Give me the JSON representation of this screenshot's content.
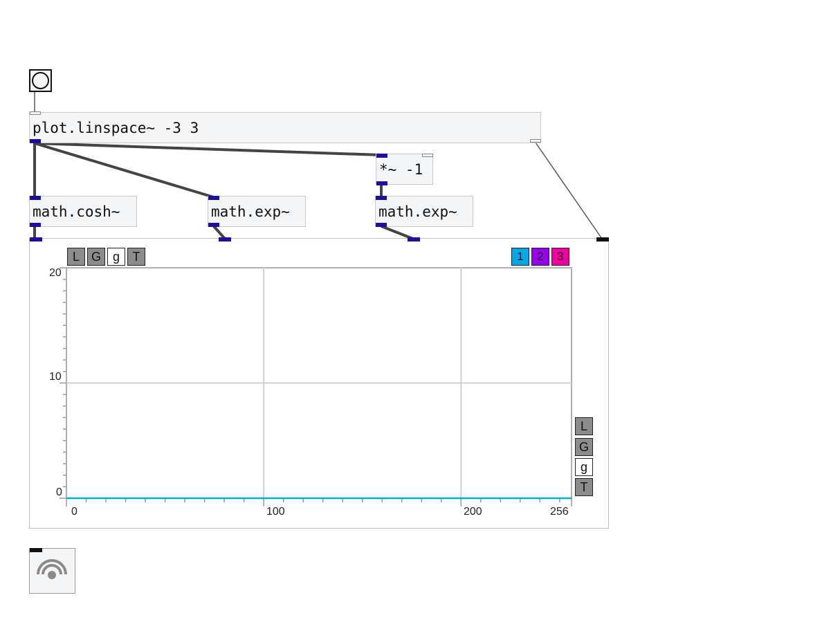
{
  "patch": {
    "linspace": {
      "text": "plot.linspace~ -3 3"
    },
    "mul": {
      "text": "*~ -1"
    },
    "cosh": {
      "text": "math.cosh~"
    },
    "exp1": {
      "text": "math.exp~"
    },
    "exp2": {
      "text": "math.exp~"
    }
  },
  "plot": {
    "top_toggles": [
      "L",
      "G",
      "g",
      "T"
    ],
    "side_toggles": [
      "L",
      "G",
      "g",
      "T"
    ],
    "series_buttons": [
      {
        "label": "1",
        "color": "#00a8e8"
      },
      {
        "label": "2",
        "color": "#9a00f0"
      },
      {
        "label": "3",
        "color": "#f000a0"
      }
    ],
    "y_ticks": [
      "20",
      "10",
      "0"
    ],
    "x_ticks": [
      "0",
      "100",
      "200",
      "256"
    ]
  },
  "chart_data": {
    "type": "line",
    "series": [
      {
        "values": [
          0,
          0
        ]
      }
    ],
    "x": [
      0,
      256
    ],
    "xlim": [
      0,
      256
    ],
    "ylim": [
      0,
      20
    ],
    "xticks": [
      0,
      100,
      200,
      256
    ],
    "yticks": [
      0,
      10,
      20
    ],
    "grid": true
  },
  "colors": {
    "wire": "#444444",
    "port": "#1c0fa0",
    "series_line": "#00a8e8"
  }
}
